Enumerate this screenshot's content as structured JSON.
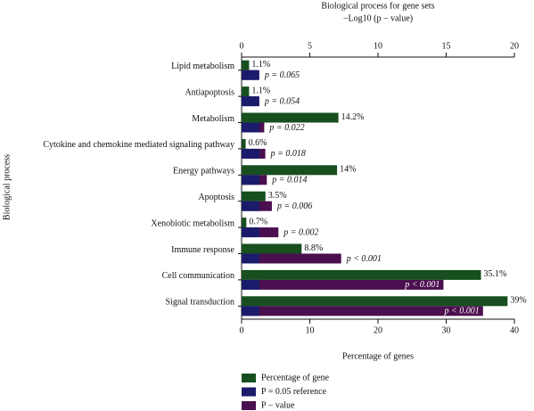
{
  "chart_data": {
    "type": "hbar",
    "title": "Biological process for gene sets",
    "x2_label": "−Log10 (p − value)",
    "x_label": "Percentage of genes",
    "y_label": "Biological process",
    "categories": [
      "Lipid metabolism",
      "Antiapoptosis",
      "Metabolism",
      "Cytokine and chemokine mediated signaling pathway",
      "Energy pathways",
      "Apoptosis",
      "Xenobiotic metabolism",
      "Immune response",
      "Cell communication",
      "Signal transduction"
    ],
    "series": [
      {
        "name": "Percentage of gene",
        "color": "#174f1f",
        "axis": "x",
        "values": [
          1.1,
          1.1,
          14.2,
          0.6,
          14,
          3.5,
          0.7,
          8.8,
          35.1,
          39
        ],
        "value_labels": [
          "1.1%",
          "1.1%",
          "14.2%",
          "0.6%",
          "14%",
          "3.5%",
          "0.7%",
          "8.8%",
          "35.1%",
          "39%"
        ]
      },
      {
        "name": "P = 0.05 reference",
        "color": "#1b1b6b",
        "axis": "x2",
        "values": [
          1.3,
          1.3,
          1.3,
          1.3,
          1.3,
          1.3,
          1.3,
          1.3,
          1.3,
          1.3
        ]
      },
      {
        "name": "P − value",
        "color": "#4a0f4e",
        "axis": "x2",
        "values": [
          1.19,
          1.27,
          1.66,
          1.74,
          1.85,
          2.22,
          2.7,
          7.3,
          14.8,
          17.7
        ],
        "value_labels": [
          "p = 0.065",
          "p = 0.054",
          "p = 0.022",
          "p = 0.018",
          "p = 0.014",
          "p = 0.006",
          "p = 0.002",
          "p < 0.001",
          "p < 0.001",
          "p < 0.001"
        ]
      }
    ],
    "xlim": [
      0,
      40
    ],
    "xticks": [
      0,
      10,
      20,
      30,
      40
    ],
    "x2lim": [
      0,
      20
    ],
    "x2ticks": [
      0,
      5,
      10,
      15,
      20
    ],
    "legend": "bottom"
  }
}
